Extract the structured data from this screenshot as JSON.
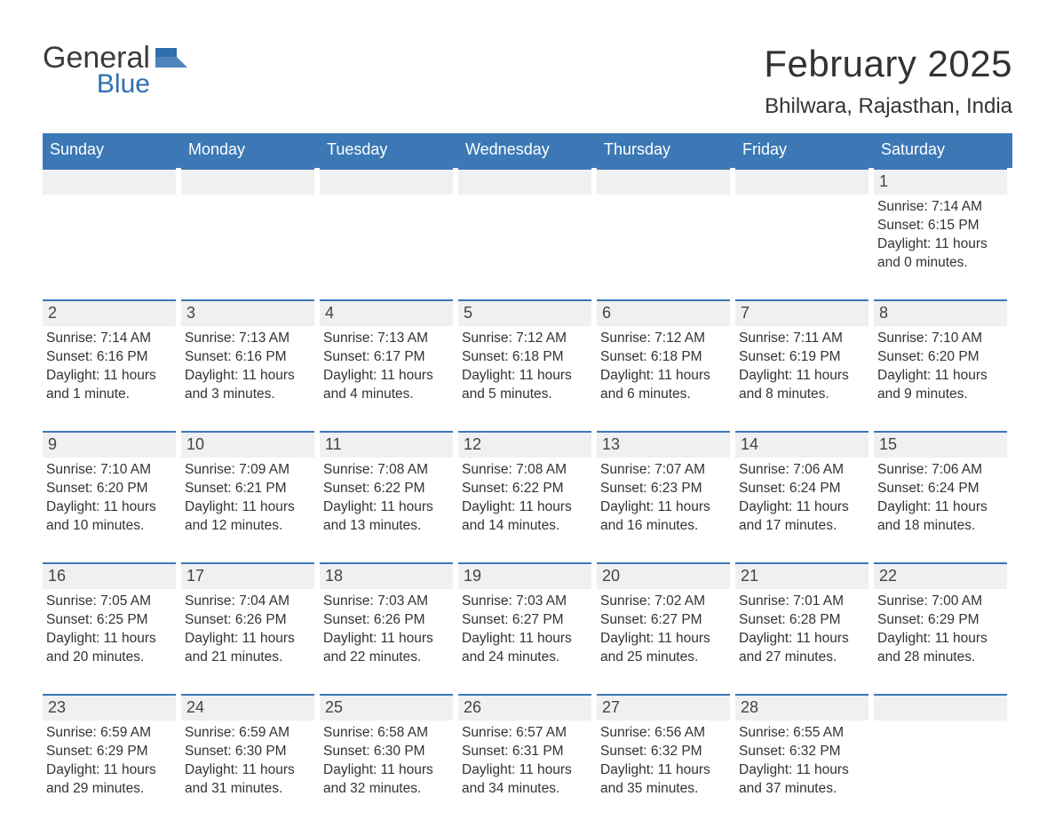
{
  "brand": {
    "name_top": "General",
    "name_bottom": "Blue",
    "mark_color": "#2f6fb0"
  },
  "title": "February 2025",
  "location": "Bhilwara, Rajasthan, India",
  "colors": {
    "header_bg": "#3b78b5",
    "header_text": "#ffffff",
    "strip_bg": "#eef0f2",
    "strip_border": "#3b78b5",
    "body_text": "#333333",
    "page_bg": "#ffffff"
  },
  "typography": {
    "title_fontsize": 42,
    "location_fontsize": 24,
    "dayheader_fontsize": 18,
    "date_fontsize": 18,
    "body_fontsize": 15.5
  },
  "layout": {
    "columns": 7,
    "rows": 5,
    "first_weekday_index": 6
  },
  "day_names": [
    "Sunday",
    "Monday",
    "Tuesday",
    "Wednesday",
    "Thursday",
    "Friday",
    "Saturday"
  ],
  "labels": {
    "sunrise": "Sunrise",
    "sunset": "Sunset",
    "daylight": "Daylight"
  },
  "weeks": [
    [
      null,
      null,
      null,
      null,
      null,
      null,
      {
        "d": "1",
        "sunrise": "7:14 AM",
        "sunset": "6:15 PM",
        "daylight": "11 hours and 0 minutes."
      }
    ],
    [
      {
        "d": "2",
        "sunrise": "7:14 AM",
        "sunset": "6:16 PM",
        "daylight": "11 hours and 1 minute."
      },
      {
        "d": "3",
        "sunrise": "7:13 AM",
        "sunset": "6:16 PM",
        "daylight": "11 hours and 3 minutes."
      },
      {
        "d": "4",
        "sunrise": "7:13 AM",
        "sunset": "6:17 PM",
        "daylight": "11 hours and 4 minutes."
      },
      {
        "d": "5",
        "sunrise": "7:12 AM",
        "sunset": "6:18 PM",
        "daylight": "11 hours and 5 minutes."
      },
      {
        "d": "6",
        "sunrise": "7:12 AM",
        "sunset": "6:18 PM",
        "daylight": "11 hours and 6 minutes."
      },
      {
        "d": "7",
        "sunrise": "7:11 AM",
        "sunset": "6:19 PM",
        "daylight": "11 hours and 8 minutes."
      },
      {
        "d": "8",
        "sunrise": "7:10 AM",
        "sunset": "6:20 PM",
        "daylight": "11 hours and 9 minutes."
      }
    ],
    [
      {
        "d": "9",
        "sunrise": "7:10 AM",
        "sunset": "6:20 PM",
        "daylight": "11 hours and 10 minutes."
      },
      {
        "d": "10",
        "sunrise": "7:09 AM",
        "sunset": "6:21 PM",
        "daylight": "11 hours and 12 minutes."
      },
      {
        "d": "11",
        "sunrise": "7:08 AM",
        "sunset": "6:22 PM",
        "daylight": "11 hours and 13 minutes."
      },
      {
        "d": "12",
        "sunrise": "7:08 AM",
        "sunset": "6:22 PM",
        "daylight": "11 hours and 14 minutes."
      },
      {
        "d": "13",
        "sunrise": "7:07 AM",
        "sunset": "6:23 PM",
        "daylight": "11 hours and 16 minutes."
      },
      {
        "d": "14",
        "sunrise": "7:06 AM",
        "sunset": "6:24 PM",
        "daylight": "11 hours and 17 minutes."
      },
      {
        "d": "15",
        "sunrise": "7:06 AM",
        "sunset": "6:24 PM",
        "daylight": "11 hours and 18 minutes."
      }
    ],
    [
      {
        "d": "16",
        "sunrise": "7:05 AM",
        "sunset": "6:25 PM",
        "daylight": "11 hours and 20 minutes."
      },
      {
        "d": "17",
        "sunrise": "7:04 AM",
        "sunset": "6:26 PM",
        "daylight": "11 hours and 21 minutes."
      },
      {
        "d": "18",
        "sunrise": "7:03 AM",
        "sunset": "6:26 PM",
        "daylight": "11 hours and 22 minutes."
      },
      {
        "d": "19",
        "sunrise": "7:03 AM",
        "sunset": "6:27 PM",
        "daylight": "11 hours and 24 minutes."
      },
      {
        "d": "20",
        "sunrise": "7:02 AM",
        "sunset": "6:27 PM",
        "daylight": "11 hours and 25 minutes."
      },
      {
        "d": "21",
        "sunrise": "7:01 AM",
        "sunset": "6:28 PM",
        "daylight": "11 hours and 27 minutes."
      },
      {
        "d": "22",
        "sunrise": "7:00 AM",
        "sunset": "6:29 PM",
        "daylight": "11 hours and 28 minutes."
      }
    ],
    [
      {
        "d": "23",
        "sunrise": "6:59 AM",
        "sunset": "6:29 PM",
        "daylight": "11 hours and 29 minutes."
      },
      {
        "d": "24",
        "sunrise": "6:59 AM",
        "sunset": "6:30 PM",
        "daylight": "11 hours and 31 minutes."
      },
      {
        "d": "25",
        "sunrise": "6:58 AM",
        "sunset": "6:30 PM",
        "daylight": "11 hours and 32 minutes."
      },
      {
        "d": "26",
        "sunrise": "6:57 AM",
        "sunset": "6:31 PM",
        "daylight": "11 hours and 34 minutes."
      },
      {
        "d": "27",
        "sunrise": "6:56 AM",
        "sunset": "6:32 PM",
        "daylight": "11 hours and 35 minutes."
      },
      {
        "d": "28",
        "sunrise": "6:55 AM",
        "sunset": "6:32 PM",
        "daylight": "11 hours and 37 minutes."
      },
      null
    ]
  ]
}
